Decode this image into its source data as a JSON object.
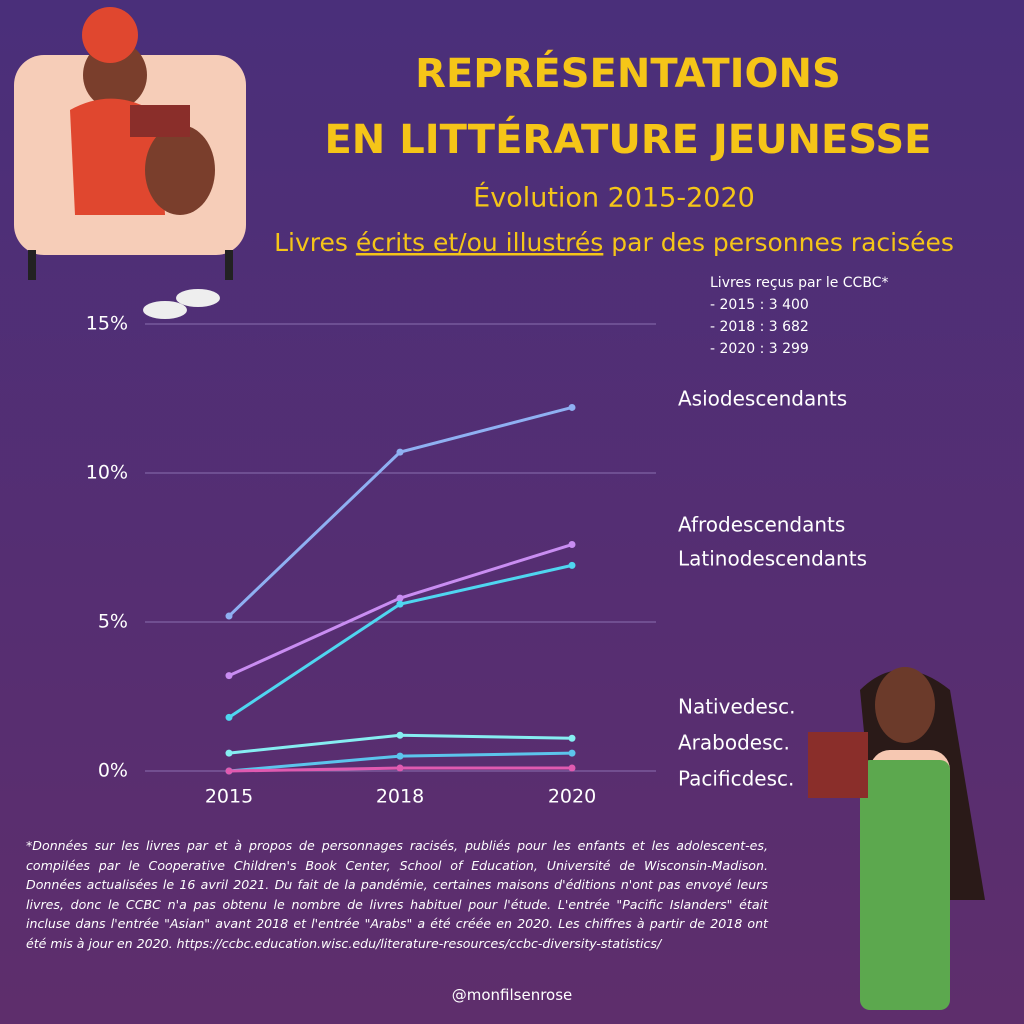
{
  "chart_data": {
    "type": "line",
    "title_lines": [
      "REPRÉSENTATIONS",
      "EN LITTÉRATURE JEUNESSE"
    ],
    "subtitle": "Évolution 2015-2020",
    "subtitle2": {
      "before": "Livres ",
      "underlined": "écrits et/ou illustrés",
      "after": " par des personnes racisées"
    },
    "note": [
      "Livres reçus par le CCBC*",
      "- 2015 : 3 400",
      "- 2018 : 3 682",
      "- 2020 : 3 299"
    ],
    "categories": [
      "2015",
      "2018",
      "2020"
    ],
    "ylim": [
      0,
      15
    ],
    "yticks": [
      {
        "value": 0,
        "label": "0%"
      },
      {
        "value": 5,
        "label": "5%"
      },
      {
        "value": 10,
        "label": "10%"
      },
      {
        "value": 15,
        "label": "15%"
      }
    ],
    "grid": true,
    "series": [
      {
        "name": "Asiodescendants",
        "color": "#8fb0f2",
        "values": [
          5.2,
          10.7,
          12.2
        ]
      },
      {
        "name": "Afrodescendants",
        "color": "#c98df2",
        "values": [
          3.2,
          5.8,
          7.6
        ]
      },
      {
        "name": "Latinodescendants",
        "color": "#4fd6f0",
        "values": [
          1.8,
          5.6,
          6.9
        ]
      },
      {
        "name": "Nativedesc.",
        "color": "#86eef2",
        "values": [
          0.6,
          1.2,
          1.1
        ]
      },
      {
        "name": "Arabodesc.",
        "color": "#5cc4ec",
        "values": [
          0,
          0.5,
          0.6
        ]
      },
      {
        "name": "Pacificdesc.",
        "color": "#e05ab0",
        "values": [
          0,
          0.1,
          0.1
        ]
      }
    ],
    "footnote": "*Données sur les livres par et à propos de personnages racisés, publiés pour les enfants et les adolescent-es, compilées par le  Cooperative Children's Book Center, School of Education, Université de Wisconsin-Madison. Données actualisées le 16 avril 2021. Du fait de la pandémie, certaines maisons d'éditions n'ont pas envoyé leurs livres, donc le CCBC n'a pas obtenu le nombre de livres habituel pour l'étude. L'entrée \"Pacific Islanders\" était incluse dans l'entrée \"Asian\" avant 2018 et l'entrée \"Arabs\" a été créée en 2020. Les chiffres à partir de 2018 ont été mis à jour en 2020. https://ccbc.education.wisc.edu/literature-resources/ccbc-diversity-statistics/",
    "handle": "@monfilsenrose"
  }
}
